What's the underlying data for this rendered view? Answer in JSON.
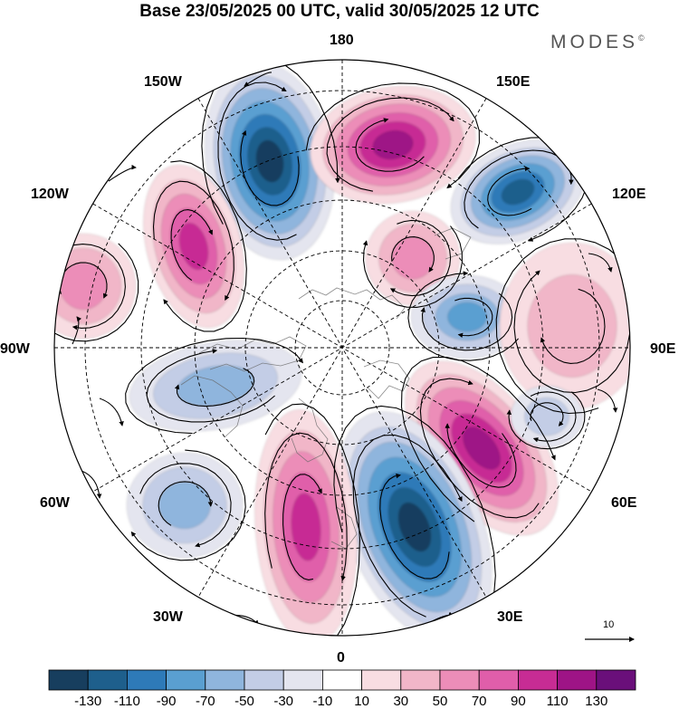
{
  "title": "Base 23/05/2025 00 UTC, valid 30/05/2025 12 UTC",
  "brand": {
    "name": "MODES",
    "symbol": "©"
  },
  "longitude_labels": {
    "n180": "180",
    "e150": "150E",
    "e120": "120E",
    "e90": "90E",
    "e60": "60E",
    "e30": "30E",
    "zero": "0",
    "w30": "30W",
    "w60": "60W",
    "w90": "90W",
    "w120": "120W",
    "w150": "150W"
  },
  "vector_reference": "10",
  "colors": {
    "neg130": "#173e5e",
    "neg110": "#1e5f8c",
    "neg90": "#2e7ab8",
    "neg70": "#5a9fd1",
    "neg50": "#8fb5dd",
    "neg30": "#c3cde6",
    "neg10": "#e4e5ef",
    "zero": "#ffffff",
    "pos10": "#f8dde2",
    "pos30": "#f1b6c8",
    "pos50": "#ec8db8",
    "pos70": "#e05eaa",
    "pos90": "#c72c94",
    "pos110": "#9e1486",
    "pos130": "#6a0f7a"
  },
  "colorbar": {
    "levels": [
      "-130",
      "-110",
      "-90",
      "-70",
      "-50",
      "-30",
      "-10",
      "10",
      "30",
      "50",
      "70",
      "90",
      "110",
      "130"
    ],
    "colors": [
      "#173e5e",
      "#1e5f8c",
      "#2e7ab8",
      "#5a9fd1",
      "#8fb5dd",
      "#c3cde6",
      "#e4e5ef",
      "#ffffff",
      "#f8dde2",
      "#f1b6c8",
      "#ec8db8",
      "#e05eaa",
      "#c72c94",
      "#9e1486",
      "#6a0f7a"
    ]
  }
}
